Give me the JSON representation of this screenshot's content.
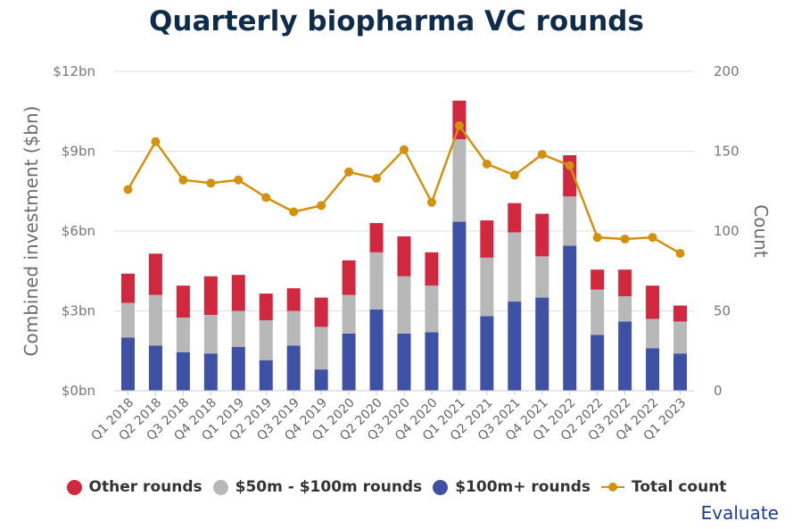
{
  "chart_data": {
    "type": "bar",
    "title": "Quarterly biopharma VC rounds",
    "ylabel": "Combined investment ($bn)",
    "y2label": "Count",
    "ylim": [
      0,
      12
    ],
    "y2lim": [
      0,
      200
    ],
    "yticks": [
      "$0bn",
      "$3bn",
      "$6bn",
      "$9bn",
      "$12bn"
    ],
    "y2ticks": [
      "0",
      "50",
      "100",
      "150",
      "200"
    ],
    "grid": true,
    "legend_position": "bottom",
    "categories": [
      "Q1 2018",
      "Q2 2018",
      "Q3 2018",
      "Q4 2018",
      "Q1 2019",
      "Q2 2019",
      "Q3 2019",
      "Q4 2019",
      "Q1 2020",
      "Q2 2020",
      "Q3 2020",
      "Q4 2020",
      "Q1 2021",
      "Q2 2021",
      "Q3 2021",
      "Q4 2021",
      "Q1 2022",
      "Q2 2022",
      "Q3 2022",
      "Q4 2022",
      "Q1 2023"
    ],
    "series": [
      {
        "name": "$100m+ rounds",
        "kind": "bar",
        "color": "#3f51a5",
        "values": [
          2.0,
          1.7,
          1.45,
          1.4,
          1.65,
          1.15,
          1.7,
          0.8,
          2.15,
          3.05,
          2.15,
          2.2,
          6.35,
          2.8,
          3.35,
          3.5,
          5.45,
          2.1,
          2.6,
          1.6,
          1.4
        ]
      },
      {
        "name": "$50m - $100m rounds",
        "kind": "bar",
        "color": "#b8b8b8",
        "values": [
          1.3,
          1.9,
          1.3,
          1.45,
          1.35,
          1.5,
          1.3,
          1.6,
          1.45,
          2.15,
          2.15,
          1.75,
          3.1,
          2.2,
          2.6,
          1.55,
          1.85,
          1.7,
          0.95,
          1.1,
          1.2
        ]
      },
      {
        "name": "Other rounds",
        "kind": "bar",
        "color": "#d0283e",
        "values": [
          1.1,
          1.55,
          1.2,
          1.45,
          1.35,
          1.0,
          0.85,
          1.1,
          1.3,
          1.1,
          1.5,
          1.25,
          1.45,
          1.4,
          1.1,
          1.6,
          1.55,
          0.75,
          1.0,
          1.25,
          0.6
        ]
      },
      {
        "name": "Total count",
        "kind": "line",
        "axis": "right",
        "color": "#d4900f",
        "values": [
          126,
          156,
          132,
          130,
          132,
          121,
          112,
          116,
          137,
          133,
          151,
          118,
          166,
          142,
          135,
          148,
          141,
          96,
          95,
          96,
          86
        ]
      }
    ]
  },
  "legend": [
    {
      "label": "Other rounds",
      "color": "#d0283e",
      "marker": "dot"
    },
    {
      "label": "$50m - $100m rounds",
      "color": "#b8b8b8",
      "marker": "dot"
    },
    {
      "label": "$100m+ rounds",
      "color": "#3f51a5",
      "marker": "dot"
    },
    {
      "label": "Total count",
      "color": "#d4900f",
      "marker": "line"
    }
  ],
  "brand": "Evaluate"
}
